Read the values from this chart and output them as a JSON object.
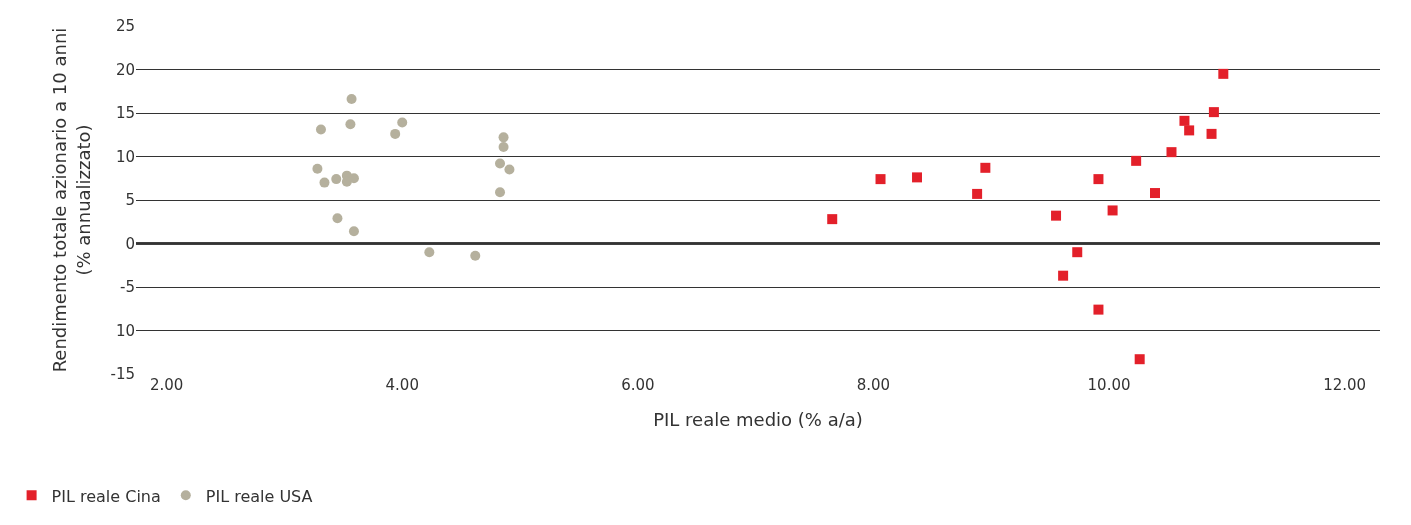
{
  "chart_data": {
    "type": "scatter",
    "xlabel": "PIL reale medio (% a/a)",
    "ylabel": "Rendimento totale azionario a 10 anni\n(% annualizzato)",
    "series": [
      {
        "name": "PIL reale Cina",
        "color": "#e3202a",
        "marker": "square",
        "x": [
          7.65,
          8.06,
          8.37,
          8.88,
          8.95,
          9.55,
          9.61,
          9.73,
          9.91,
          9.91,
          10.03,
          10.23,
          10.26,
          10.39,
          10.53,
          10.64,
          10.68,
          10.89,
          10.87,
          10.97
        ],
        "values": [
          2.8,
          7.4,
          7.6,
          5.7,
          8.7,
          3.2,
          -3.7,
          -1.0,
          7.4,
          -7.6,
          3.8,
          9.5,
          -13.3,
          5.8,
          10.5,
          14.1,
          13.0,
          15.1,
          12.6,
          19.5
        ]
      },
      {
        "name": "PIL reale USA",
        "color": "#b5b09d",
        "marker": "circle",
        "x": [
          3.31,
          3.28,
          3.34,
          3.44,
          3.45,
          3.53,
          3.53,
          3.56,
          3.57,
          3.59,
          3.59,
          3.94,
          4.0,
          4.23,
          4.62,
          4.83,
          4.83,
          4.86,
          4.86,
          4.91
        ],
        "values": [
          13.1,
          8.6,
          7.0,
          7.4,
          2.9,
          7.8,
          7.1,
          13.7,
          16.6,
          7.5,
          1.4,
          12.6,
          13.9,
          -1.0,
          -1.4,
          5.9,
          9.2,
          12.2,
          11.1,
          8.5
        ]
      }
    ],
    "xlim": [
      1.74,
      12.3
    ],
    "xticks": [
      {
        "value": 2,
        "label": "2.00"
      },
      {
        "value": 4,
        "label": "4.00"
      },
      {
        "value": 6,
        "label": "6.00"
      },
      {
        "value": 8,
        "label": "8.00"
      },
      {
        "value": 10,
        "label": "10.00"
      },
      {
        "value": 12,
        "label": "12.00"
      }
    ],
    "ylim": [
      -15,
      25
    ],
    "yticks": [
      -15,
      {
        "value": -10,
        "label": "10"
      },
      -5,
      0,
      5,
      10,
      15,
      20,
      25
    ],
    "ref_lines": [
      {
        "axis": "y",
        "value": 0,
        "color": "#000000"
      }
    ],
    "grid": "y",
    "legend": "bottom left"
  }
}
